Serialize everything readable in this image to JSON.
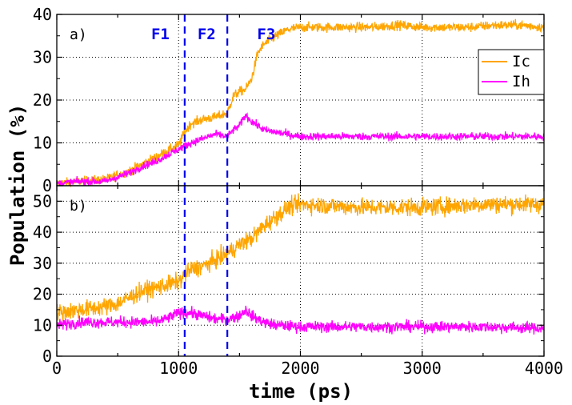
{
  "chart_data": [
    {
      "panel": "a)",
      "type": "line",
      "xlabel": "time (ps)",
      "ylabel": "Population (%)",
      "xlim": [
        0,
        4000
      ],
      "ylim": [
        0,
        40
      ],
      "yticks": [
        0,
        10,
        20,
        30,
        40
      ],
      "grid": true,
      "phase_lines": [
        1050,
        1400
      ],
      "phase_labels": [
        {
          "text": "F1",
          "x": 850
        },
        {
          "text": "F2",
          "x": 1230
        },
        {
          "text": "F3",
          "x": 1720
        }
      ],
      "legend": {
        "position": "right",
        "entries": [
          "Ic",
          "Ih"
        ]
      },
      "series": [
        {
          "name": "Ic",
          "color": "#FFA500",
          "x": [
            0,
            200,
            400,
            500,
            600,
            700,
            800,
            900,
            1000,
            1050,
            1100,
            1200,
            1300,
            1400,
            1450,
            1500,
            1550,
            1600,
            1650,
            1700,
            1800,
            1900,
            2000,
            2200,
            2400,
            2600,
            2800,
            3000,
            3200,
            3400,
            3600,
            3800,
            4000
          ],
          "y": [
            0.5,
            1.0,
            1.5,
            2.5,
            3.5,
            5.0,
            6.5,
            8.0,
            9.5,
            12.5,
            14.5,
            15.5,
            16.0,
            17.0,
            21.0,
            22.0,
            22.5,
            25.0,
            31.0,
            33.0,
            35.0,
            36.5,
            37.0,
            37.0,
            37.0,
            37.0,
            37.5,
            37.0,
            37.0,
            37.0,
            37.5,
            37.5,
            37.0
          ]
        },
        {
          "name": "Ih",
          "color": "#FF00FF",
          "x": [
            0,
            200,
            400,
            500,
            600,
            700,
            800,
            900,
            1000,
            1100,
            1200,
            1300,
            1400,
            1450,
            1500,
            1550,
            1600,
            1700,
            1800,
            1900,
            2000,
            2500,
            3000,
            3500,
            4000
          ],
          "y": [
            0.5,
            1.0,
            1.0,
            2.0,
            3.0,
            4.5,
            5.5,
            7.0,
            8.5,
            10.0,
            11.0,
            12.0,
            11.5,
            13.0,
            14.0,
            16.5,
            15.0,
            13.0,
            12.5,
            12.0,
            11.5,
            11.5,
            11.5,
            11.5,
            11.5
          ]
        }
      ]
    },
    {
      "panel": "b)",
      "type": "line",
      "xlabel": "time (ps)",
      "ylabel": "Population (%)",
      "xlim": [
        0,
        4000
      ],
      "ylim": [
        0,
        55
      ],
      "yticks": [
        0,
        10,
        20,
        30,
        40,
        50
      ],
      "xticks": [
        0,
        1000,
        2000,
        3000,
        4000
      ],
      "grid": true,
      "phase_lines": [
        1050,
        1400
      ],
      "series": [
        {
          "name": "Ic",
          "color": "#FFA500",
          "x": [
            0,
            200,
            400,
            500,
            600,
            700,
            800,
            900,
            1000,
            1100,
            1200,
            1300,
            1400,
            1500,
            1600,
            1700,
            1800,
            1900,
            2000,
            2500,
            3000,
            3500,
            4000
          ],
          "y": [
            14,
            15,
            16,
            17,
            19,
            21,
            22,
            23,
            24,
            28,
            29,
            31,
            33,
            36,
            38,
            42,
            45,
            48,
            49,
            48,
            48,
            49,
            49
          ]
        },
        {
          "name": "Ih",
          "color": "#FF00FF",
          "x": [
            0,
            200,
            400,
            600,
            800,
            900,
            1000,
            1100,
            1200,
            1300,
            1400,
            1500,
            1550,
            1600,
            1700,
            1800,
            2000,
            2500,
            3000,
            3500,
            4000
          ],
          "y": [
            10,
            11,
            11,
            11,
            11,
            12,
            14,
            14,
            13,
            12,
            12,
            13,
            15,
            13,
            11,
            10,
            9.5,
            9.5,
            9.5,
            9.5,
            9
          ]
        }
      ]
    }
  ]
}
